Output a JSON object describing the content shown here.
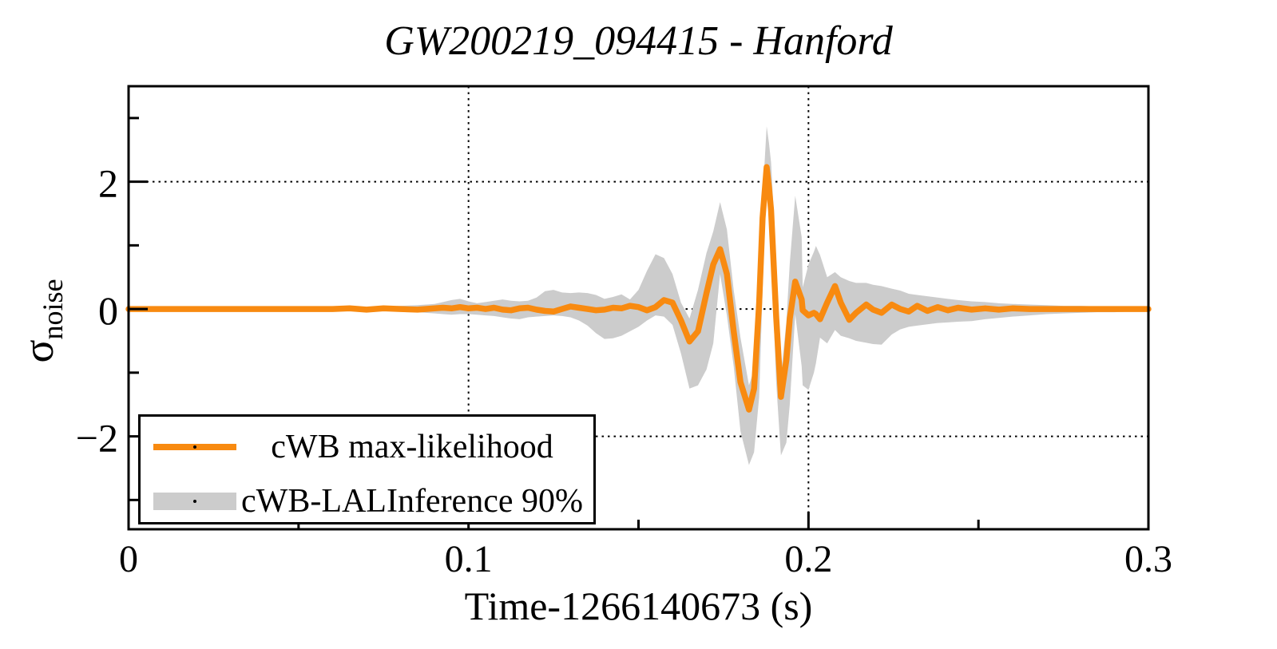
{
  "title": "GW200219_094415 - Hanford",
  "x_axis": {
    "label": "Time-1266140673 (s)",
    "min": 0,
    "max": 0.3,
    "major_ticks": [
      0,
      0.1,
      0.2,
      0.3
    ],
    "major_tick_labels": [
      "0",
      "0.1",
      "0.2",
      "0.3"
    ],
    "minor_ticks": [
      0.05,
      0.15,
      0.25
    ],
    "gridlines": [
      0.1,
      0.2,
      0.3
    ]
  },
  "y_axis": {
    "label_symbol": "σ",
    "label_subscript": "noise",
    "min": -3.46,
    "max": 3.5,
    "major_ticks": [
      -2,
      0,
      2
    ],
    "major_tick_labels": [
      "−2",
      "0",
      "2"
    ],
    "minor_ticks": [
      -3,
      -1,
      1,
      3
    ],
    "gridlines": [
      -2,
      0,
      2
    ]
  },
  "legend": {
    "position": "bottom-left",
    "entries": [
      {
        "style": "line",
        "label": "cWB max-likelihood"
      },
      {
        "style": "band",
        "label": "cWB-LALInference 90%"
      }
    ]
  },
  "colors": {
    "line": "#f88a10",
    "band": "#cccccc",
    "frame": "#000000",
    "grid": "#000000",
    "background": "#ffffff"
  },
  "chart_data": {
    "type": "line",
    "title": "GW200219_094415 - Hanford",
    "xlabel": "Time-1266140673 (s)",
    "ylabel": "σ_noise",
    "xlim": [
      0,
      0.3
    ],
    "ylim": [
      -3.46,
      3.5
    ],
    "grid": "dotted gridlines at x=0.1,0.2,0.3 and y=-2,0,2",
    "legend_position": "bottom-left",
    "x": [
      0,
      0.02,
      0.04,
      0.055,
      0.06,
      0.065,
      0.07,
      0.075,
      0.08,
      0.085,
      0.09,
      0.0925,
      0.095,
      0.0975,
      0.1,
      0.1025,
      0.105,
      0.1075,
      0.11,
      0.1125,
      0.115,
      0.1175,
      0.12,
      0.1225,
      0.125,
      0.1275,
      0.13,
      0.1325,
      0.135,
      0.1375,
      0.14,
      0.1425,
      0.145,
      0.1475,
      0.15,
      0.1525,
      0.155,
      0.1575,
      0.16,
      0.1625,
      0.165,
      0.1675,
      0.17,
      0.172,
      0.174,
      0.176,
      0.178,
      0.18,
      0.1825,
      0.184,
      0.1855,
      0.1865,
      0.1877,
      0.1884,
      0.189,
      0.1905,
      0.1919,
      0.1935,
      0.1945,
      0.1961,
      0.198,
      0.1983,
      0.2,
      0.2016,
      0.2022,
      0.2034,
      0.2055,
      0.2078,
      0.2095,
      0.212,
      0.214,
      0.217,
      0.219,
      0.2215,
      0.2245,
      0.227,
      0.2295,
      0.232,
      0.235,
      0.238,
      0.241,
      0.244,
      0.248,
      0.252,
      0.256,
      0.26,
      0.265,
      0.27,
      0.275,
      0.28,
      0.285,
      0.29,
      0.295,
      0.3
    ],
    "series": [
      {
        "name": "cWB max-likelihood",
        "type": "line",
        "color": "#f88a10",
        "values": [
          0,
          0,
          0,
          0,
          0,
          0.01,
          -0.01,
          0.01,
          0,
          -0.01,
          0.01,
          0.02,
          0.01,
          0.03,
          0.01,
          0.02,
          0,
          0.02,
          -0.01,
          -0.02,
          0.01,
          0.02,
          -0.01,
          -0.03,
          -0.04,
          0,
          0.04,
          0.02,
          0,
          -0.02,
          -0.01,
          0.02,
          0.01,
          0.05,
          0.03,
          -0.02,
          0.03,
          0.14,
          0.1,
          -0.18,
          -0.51,
          -0.35,
          0.25,
          0.7,
          0.94,
          0.55,
          -0.35,
          -1.15,
          -1.58,
          -1.25,
          0.1,
          1.43,
          2.23,
          1.9,
          1.55,
          -0.12,
          -1.38,
          -0.8,
          -0.15,
          0.43,
          0.15,
          -0.02,
          -0.1,
          -0.06,
          -0.08,
          -0.16,
          0.1,
          0.36,
          0.1,
          -0.17,
          -0.06,
          0.07,
          -0.01,
          -0.06,
          0.07,
          0,
          -0.04,
          0.05,
          -0.03,
          0.03,
          -0.02,
          0.02,
          -0.01,
          0.01,
          -0.01,
          0.01,
          0,
          0,
          0,
          0,
          0,
          0,
          0,
          0
        ]
      },
      {
        "name": "cWB-LALInference 90%",
        "type": "band",
        "color": "#cccccc",
        "upper": [
          0,
          0,
          0,
          0.01,
          0.02,
          0.02,
          0.03,
          0.04,
          0.05,
          0.06,
          0.08,
          0.11,
          0.14,
          0.16,
          0.12,
          0.09,
          0.11,
          0.13,
          0.15,
          0.13,
          0.12,
          0.13,
          0.18,
          0.28,
          0.3,
          0.26,
          0.25,
          0.26,
          0.25,
          0.22,
          0.16,
          0.19,
          0.23,
          0.15,
          0.3,
          0.6,
          0.86,
          0.8,
          0.55,
          0.1,
          -0.15,
          0.3,
          0.88,
          1.22,
          1.68,
          1.25,
          0.3,
          -0.45,
          -1.2,
          -0.95,
          0.63,
          1.75,
          2.87,
          2.6,
          2.3,
          0.8,
          -1.04,
          -0.2,
          0.72,
          1.78,
          1.13,
          0.34,
          0.7,
          0.9,
          0.99,
          0.85,
          0.5,
          0.58,
          0.5,
          0.44,
          0.41,
          0.41,
          0.38,
          0.36,
          0.32,
          0.29,
          0.24,
          0.22,
          0.2,
          0.18,
          0.16,
          0.14,
          0.12,
          0.11,
          0.09,
          0.08,
          0.07,
          0.06,
          0.05,
          0.05,
          0.04,
          0.04,
          0.04,
          0.04
        ],
        "lower": [
          0,
          0,
          0,
          -0.01,
          -0.01,
          -0.02,
          -0.02,
          -0.03,
          -0.04,
          -0.05,
          -0.07,
          -0.08,
          -0.09,
          -0.08,
          -0.08,
          -0.09,
          -0.1,
          -0.11,
          -0.13,
          -0.15,
          -0.16,
          -0.13,
          -0.12,
          -0.11,
          -0.1,
          -0.11,
          -0.13,
          -0.18,
          -0.26,
          -0.38,
          -0.47,
          -0.46,
          -0.42,
          -0.35,
          -0.28,
          -0.18,
          -0.1,
          -0.12,
          -0.25,
          -0.7,
          -1.25,
          -1.2,
          -0.95,
          -0.54,
          0.55,
          -0.1,
          -0.9,
          -1.92,
          -2.45,
          -2.25,
          -1.38,
          0.3,
          1.95,
          1.45,
          0.9,
          -1.15,
          -2.3,
          -2.1,
          -1.5,
          -0.08,
          -0.9,
          -1.2,
          -1.27,
          -1,
          -0.85,
          -0.45,
          -0.54,
          -0.33,
          -0.42,
          -0.46,
          -0.5,
          -0.53,
          -0.55,
          -0.56,
          -0.4,
          -0.32,
          -0.28,
          -0.26,
          -0.24,
          -0.22,
          -0.21,
          -0.2,
          -0.19,
          -0.16,
          -0.14,
          -0.12,
          -0.1,
          -0.08,
          -0.07,
          -0.06,
          -0.05,
          -0.05,
          -0.04,
          -0.04
        ]
      }
    ]
  }
}
